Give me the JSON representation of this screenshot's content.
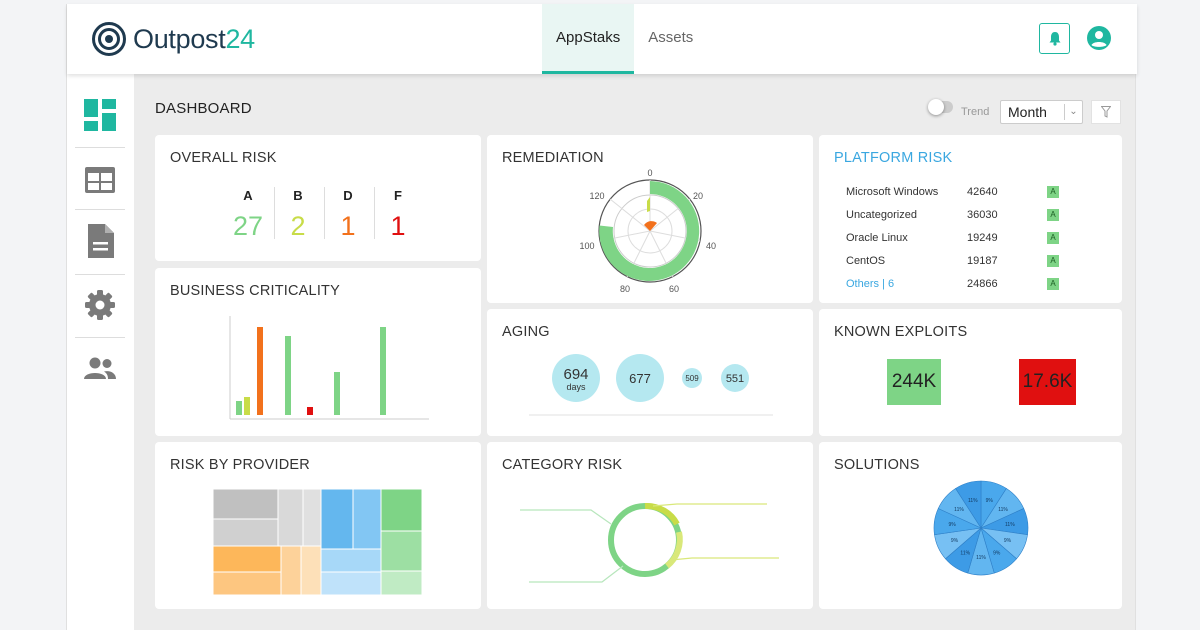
{
  "app": {
    "logo_text": "Outpost",
    "logo_num": "24"
  },
  "nav": {
    "tabs": [
      {
        "label": "AppStaks",
        "active": true
      },
      {
        "label": "Assets",
        "active": false
      }
    ]
  },
  "icons": {
    "notifications": "bell-icon",
    "account": "user-icon"
  },
  "sidebar": {
    "items": [
      {
        "name": "dashboard-icon",
        "active": true
      },
      {
        "name": "table-icon",
        "active": false
      },
      {
        "name": "document-icon",
        "active": false
      },
      {
        "name": "gear-icon",
        "active": false
      },
      {
        "name": "users-icon",
        "active": false
      }
    ]
  },
  "toolbar": {
    "title": "DASHBOARD",
    "trend_label": "Trend",
    "trend_on": false,
    "period": "Month"
  },
  "colors": {
    "accent": "#1fb7a0",
    "A": "#7ed486",
    "B": "#c8dc48",
    "D": "#f2711c",
    "F": "#e01010",
    "link": "#3aa7e0"
  },
  "overall_risk": {
    "title": "OVERALL RISK",
    "grades": [
      {
        "letter": "A",
        "value": "27"
      },
      {
        "letter": "B",
        "value": "2"
      },
      {
        "letter": "D",
        "value": "1"
      },
      {
        "letter": "F",
        "value": "1"
      }
    ]
  },
  "remediation": {
    "title": "REMEDIATION",
    "ticks": [
      "0",
      "20",
      "40",
      "60",
      "80",
      "100",
      "120"
    ]
  },
  "platform_risk": {
    "title": "PLATFORM RISK",
    "rows": [
      {
        "name": "Microsoft Windows",
        "value": "42640",
        "grade": "A"
      },
      {
        "name": "Uncategorized",
        "value": "36030",
        "grade": "A"
      },
      {
        "name": "Oracle Linux",
        "value": "19249",
        "grade": "A"
      },
      {
        "name": "CentOS",
        "value": "19187",
        "grade": "A"
      },
      {
        "name": "Others | 6",
        "value": "24866",
        "grade": "A",
        "link": true
      }
    ]
  },
  "business_criticality": {
    "title": "BUSINESS CRITICALITY"
  },
  "aging": {
    "title": "AGING",
    "bubbles": [
      {
        "value": "694",
        "unit": "days"
      },
      {
        "value": "677"
      },
      {
        "value": "509"
      },
      {
        "value": "551"
      }
    ]
  },
  "known_exploits": {
    "title": "KNOWN EXPLOITS",
    "items": [
      {
        "value": "244K",
        "color": "#7ed486"
      },
      {
        "value": "17.6K",
        "color": "#e01010"
      }
    ]
  },
  "risk_by_provider": {
    "title": "RISK BY PROVIDER"
  },
  "category_risk": {
    "title": "CATEGORY RISK"
  },
  "solutions": {
    "title": "SOLUTIONS",
    "slice_labels": [
      "9%",
      "11%",
      "11%",
      "9%",
      "9%",
      "11%",
      "11%",
      "9%",
      "9%",
      "11%",
      "11%"
    ]
  }
}
